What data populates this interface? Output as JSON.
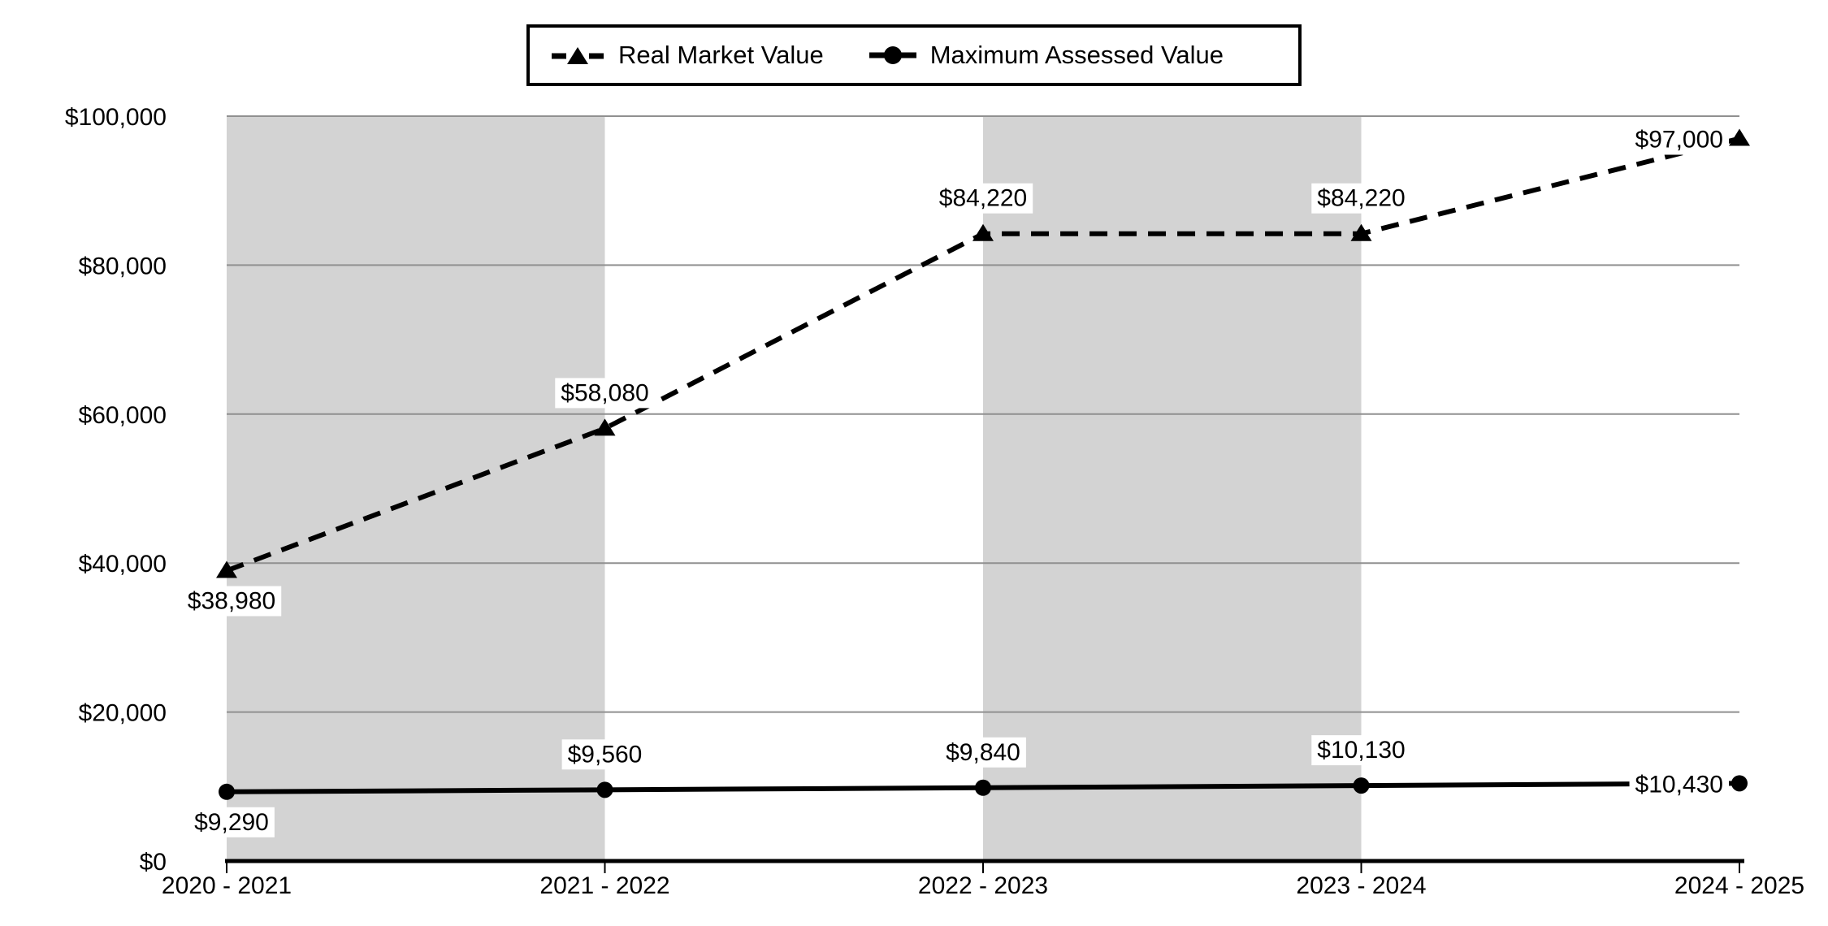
{
  "legend": {
    "items": [
      {
        "label": "Real Market Value",
        "marker": "triangle-dashed"
      },
      {
        "label": "Maximum Assessed Value",
        "marker": "circle-solid"
      }
    ]
  },
  "chart_data": {
    "type": "line",
    "title": "",
    "xlabel": "",
    "ylabel": "",
    "categories": [
      "2020 - 2021",
      "2021 - 2022",
      "2022 - 2023",
      "2023 - 2024",
      "2024 - 2025"
    ],
    "series": [
      {
        "name": "Real Market Value",
        "values": [
          38980,
          58080,
          84220,
          84220,
          97000
        ],
        "labels": [
          "$38,980",
          "$58,080",
          "$84,220",
          "$84,220",
          "$97,000"
        ],
        "line_style": "dashed",
        "marker": "triangle",
        "label_positions": [
          "below",
          "above",
          "above",
          "above",
          "left"
        ]
      },
      {
        "name": "Maximum Assessed Value",
        "values": [
          9290,
          9560,
          9840,
          10130,
          10430
        ],
        "labels": [
          "$9,290",
          "$9,560",
          "$9,840",
          "$10,130",
          "$10,430"
        ],
        "line_style": "solid",
        "marker": "circle",
        "label_positions": [
          "below",
          "above",
          "above",
          "above",
          "left"
        ]
      }
    ],
    "ylim": [
      0,
      100000
    ],
    "ytick_step": 20000,
    "ytick_labels": [
      "$0",
      "$20,000",
      "$40,000",
      "$60,000",
      "$80,000",
      "$100,000"
    ],
    "grid": true,
    "legend_position": "top",
    "shaded_bands": [
      [
        0,
        1
      ],
      [
        2,
        3
      ]
    ],
    "band_color": "#d3d3d3",
    "grid_color": "#909090",
    "line_color": "#000000",
    "background_color": "#ffffff"
  }
}
